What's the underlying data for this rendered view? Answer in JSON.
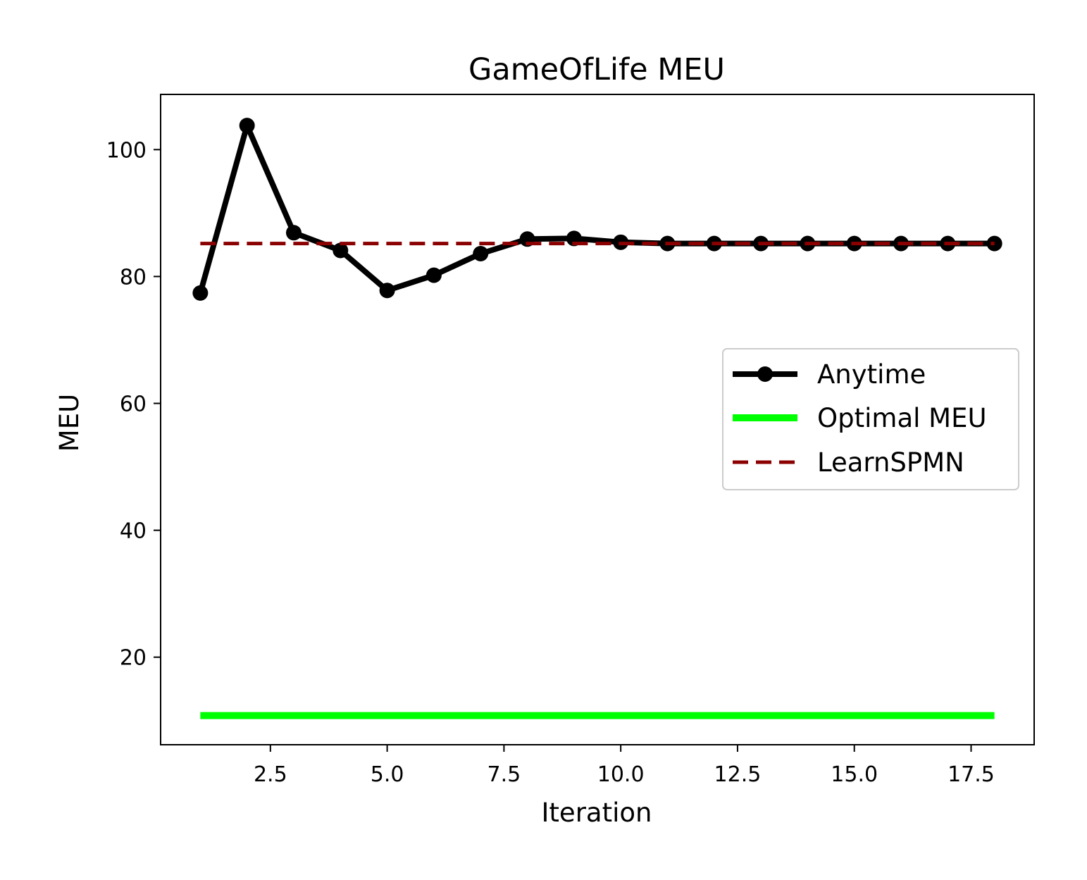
{
  "chart_data": {
    "type": "line",
    "title": "GameOfLife MEU",
    "xlabel": "Iteration",
    "ylabel": "MEU",
    "xlim": [
      0.15,
      18.85
    ],
    "ylim": [
      6.2,
      108.7
    ],
    "xticks": [
      2.5,
      5.0,
      7.5,
      10.0,
      12.5,
      15.0,
      17.5
    ],
    "xtick_labels": [
      "2.5",
      "5.0",
      "7.5",
      "10.0",
      "12.5",
      "15.0",
      "17.5"
    ],
    "yticks": [
      20,
      40,
      60,
      80,
      100
    ],
    "ytick_labels": [
      "20",
      "40",
      "60",
      "80",
      "100"
    ],
    "grid": false,
    "legend_position": "center-right",
    "series": [
      {
        "name": "Anytime",
        "style": "solid-with-markers",
        "color": "#000000",
        "x": [
          1,
          2,
          3,
          4,
          5,
          6,
          7,
          8,
          9,
          10,
          11,
          12,
          13,
          14,
          15,
          16,
          17,
          18
        ],
        "y": [
          77.4,
          103.8,
          86.9,
          84.1,
          77.8,
          80.2,
          83.6,
          85.9,
          86.0,
          85.4,
          85.2,
          85.2,
          85.2,
          85.2,
          85.2,
          85.2,
          85.2,
          85.2
        ]
      },
      {
        "name": "Optimal MEU",
        "style": "solid",
        "color": "#00ff00",
        "x": [
          1,
          18
        ],
        "y": [
          10.8,
          10.8
        ]
      },
      {
        "name": "LearnSPMN",
        "style": "dashed",
        "color": "#8b0000",
        "x": [
          1,
          18
        ],
        "y": [
          85.2,
          85.2
        ]
      }
    ]
  }
}
